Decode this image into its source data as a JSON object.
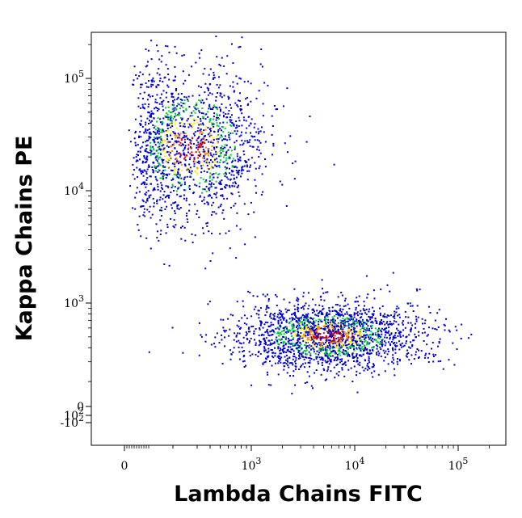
{
  "chart_data": {
    "type": "scatter",
    "title": "",
    "xlabel": "Lambda Chains FITC",
    "ylabel": "Kappa Chains PE",
    "x_scale": "biexponential",
    "y_scale": "biexponential",
    "x_ticks": [
      {
        "value": 0,
        "base": "0",
        "exp": ""
      },
      {
        "value": 1000,
        "base": "10",
        "exp": "3"
      },
      {
        "value": 10000,
        "base": "10",
        "exp": "4"
      },
      {
        "value": 100000,
        "base": "10",
        "exp": "5"
      }
    ],
    "y_ticks": [
      {
        "value": 100000,
        "base": "10",
        "exp": "5"
      },
      {
        "value": 10000,
        "base": "10",
        "exp": "4"
      },
      {
        "value": 1000,
        "base": "10",
        "exp": "3"
      },
      {
        "value": 100,
        "base": "10",
        "exp": "2"
      },
      {
        "value": 0,
        "base": "0",
        "exp": ""
      },
      {
        "value": -100,
        "base": "-10",
        "exp": "2"
      }
    ],
    "grid": false,
    "legend": "none",
    "density_colors": [
      "#0000cc",
      "#00cc33",
      "#ffee00",
      "#ff8800",
      "#dd0000"
    ],
    "series": [
      {
        "population": "kappa-positive",
        "x_center": 270,
        "y_center": 25000,
        "x_spread_decades": 0.35,
        "y_spread_decades": 0.35,
        "approx_events": 1600
      },
      {
        "population": "lambda-positive",
        "x_center": 5500,
        "y_center": 520,
        "x_spread_decades": 0.45,
        "y_spread_decades": 0.15,
        "approx_events": 2000
      }
    ]
  }
}
